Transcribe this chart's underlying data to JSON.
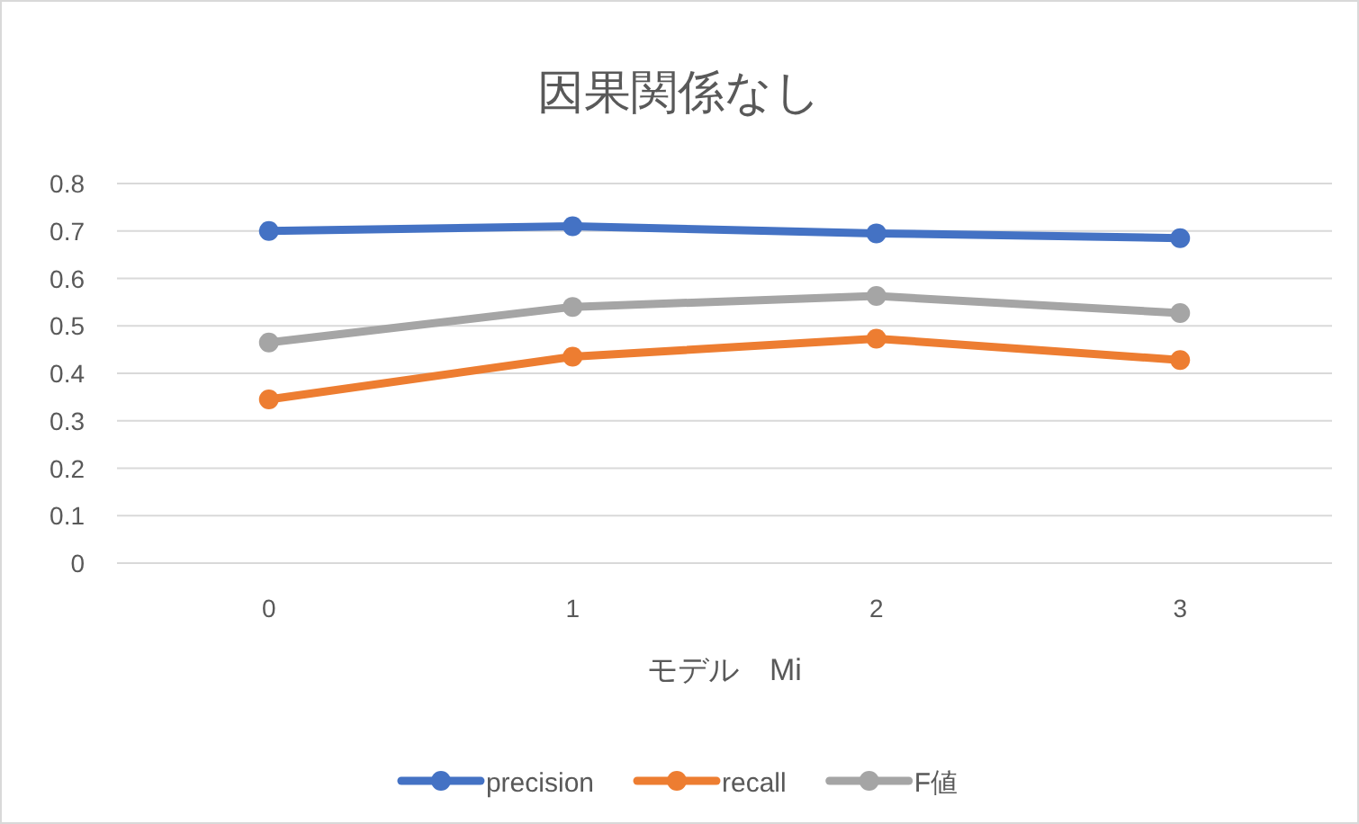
{
  "chart_data": {
    "type": "line",
    "title": "因果関係なし",
    "xlabel": "モデル　Mi",
    "categories": [
      "0",
      "1",
      "2",
      "3"
    ],
    "series": [
      {
        "name": "precision",
        "color": "#4472c4",
        "values": [
          0.7,
          0.71,
          0.695,
          0.685
        ]
      },
      {
        "name": "recall",
        "color": "#ed7d31",
        "values": [
          0.345,
          0.435,
          0.473,
          0.428
        ]
      },
      {
        "name": "F値",
        "color": "#a5a5a5",
        "values": [
          0.465,
          0.54,
          0.563,
          0.527
        ]
      }
    ],
    "ylim": [
      0,
      0.8
    ],
    "yticks": [
      0,
      0.1,
      0.2,
      0.3,
      0.4,
      0.5,
      0.6,
      0.7,
      0.8
    ],
    "grid": "y",
    "legend": "bottom",
    "marker": "circle",
    "line_style": "solid"
  }
}
